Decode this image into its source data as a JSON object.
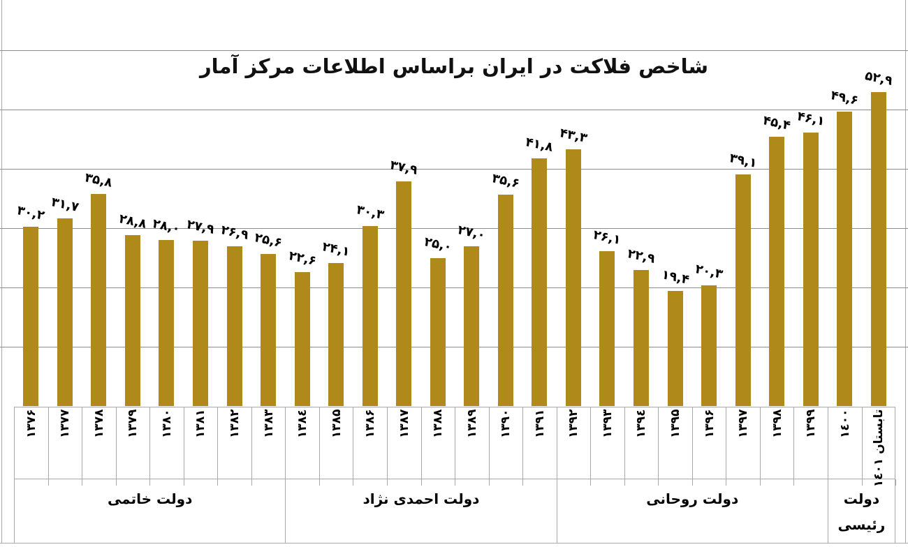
{
  "chart_data": {
    "type": "bar",
    "title": "شاخص فلاکت در ایران براساس اطلاعات مرکز آمار",
    "xlabel": "",
    "ylabel": "",
    "ylim": [
      0,
      60
    ],
    "gridline_values": [
      10,
      20,
      30,
      40,
      50,
      60
    ],
    "grid_on": true,
    "legend": null,
    "categories": [
      "۱۳۷۶",
      "۱۳۷۷",
      "۱۳۷۸",
      "۱۳۷۹",
      "۱۳۸۰",
      "۱۳۸۱",
      "۱۳۸۲",
      "۱۳۸۳",
      "۱۳۸٤",
      "۱۳۸۵",
      "۱۳۸۶",
      "۱۳۸۷",
      "۱۳۸۸",
      "۱۳۸۹",
      "۱۳۹۰",
      "۱۳۹۱",
      "۱۳۹۲",
      "۱۳۹۳",
      "۱۳۹٤",
      "۱۳۹۵",
      "۱۳۹۶",
      "۱۳۹۷",
      "۱۳۹۸",
      "۱۳۹۹",
      "۱٤۰۰",
      "تابستان ۱٤۰۱"
    ],
    "values": [
      30.2,
      31.7,
      35.8,
      28.8,
      28.0,
      27.9,
      26.9,
      25.6,
      22.6,
      24.1,
      30.3,
      37.9,
      25.0,
      27.0,
      35.6,
      41.8,
      43.3,
      26.1,
      22.9,
      19.4,
      20.3,
      39.1,
      45.4,
      46.1,
      49.6,
      52.9
    ],
    "value_labels": [
      "۳۰,۲",
      "۳۱,۷",
      "۳۵,۸",
      "۲۸,۸",
      "۲۸,۰",
      "۲۷,۹",
      "۲۶,۹",
      "۲۵,۶",
      "۲۲,۶",
      "۲۴,۱",
      "۳۰,۳",
      "۳۷,۹",
      "۲۵,۰",
      "۲۷,۰",
      "۳۵,۶",
      "۴۱,۸",
      "۴۳,۳",
      "۲۶,۱",
      "۲۲,۹",
      "۱۹,۴",
      "۲۰,۳",
      "۳۹,۱",
      "۴۵,۴",
      "۴۶,۱",
      "۴۹,۶",
      "۵۲,۹"
    ],
    "groups": [
      {
        "label": "دولت خاتمی",
        "span": 8
      },
      {
        "label": "دولت احمدی نژاد",
        "span": 8
      },
      {
        "label": "دولت روحانی",
        "span": 8
      },
      {
        "label": "دولت رئیسی",
        "span": 2
      }
    ]
  },
  "colors": {
    "bar": "#B0891B",
    "gridline": "#8c8c8c",
    "box_border": "#a8a8a8",
    "text": "#000000"
  }
}
